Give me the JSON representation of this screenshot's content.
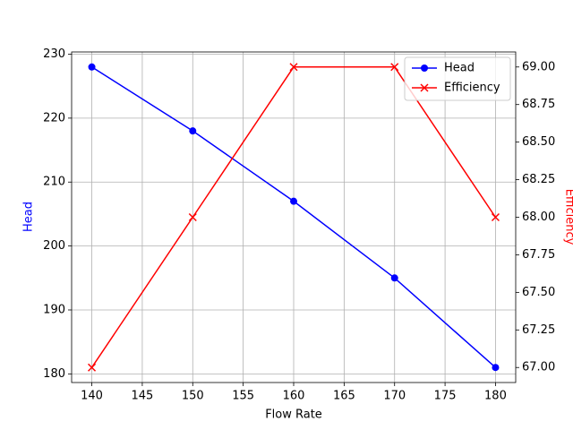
{
  "chart_data": {
    "type": "line",
    "xlabel": "Flow Rate",
    "ylabel": "Head",
    "y2label": "Efficiency",
    "x": [
      140,
      150,
      160,
      170,
      180
    ],
    "series": [
      {
        "name": "Head",
        "color": "#0000ff",
        "marker": "o",
        "values": [
          228,
          218,
          207,
          195,
          181
        ]
      },
      {
        "name": "Efficiency",
        "color": "#ff0000",
        "marker": "x",
        "axis": "y2",
        "values": [
          67,
          68,
          69,
          69,
          68
        ]
      }
    ],
    "xlim": [
      138,
      182
    ],
    "xticks": [
      140,
      145,
      150,
      155,
      160,
      165,
      170,
      175,
      180
    ],
    "ylim": [
      178.65,
      230.35
    ],
    "yticks": [
      180,
      190,
      200,
      210,
      220,
      230
    ],
    "y2lim": [
      66.9,
      69.1
    ],
    "y2ticks": [
      {
        "value": 67,
        "label": "67.00"
      },
      {
        "value": 67.25,
        "label": "67.25"
      },
      {
        "value": 67.5,
        "label": "67.50"
      },
      {
        "value": 67.75,
        "label": "67.75"
      },
      {
        "value": 68,
        "label": "68.00"
      },
      {
        "value": 68.25,
        "label": "68.25"
      },
      {
        "value": 68.5,
        "label": "68.50"
      },
      {
        "value": 68.75,
        "label": "68.75"
      },
      {
        "value": 69,
        "label": "69.00"
      }
    ],
    "grid": true,
    "legend": "upper right"
  }
}
